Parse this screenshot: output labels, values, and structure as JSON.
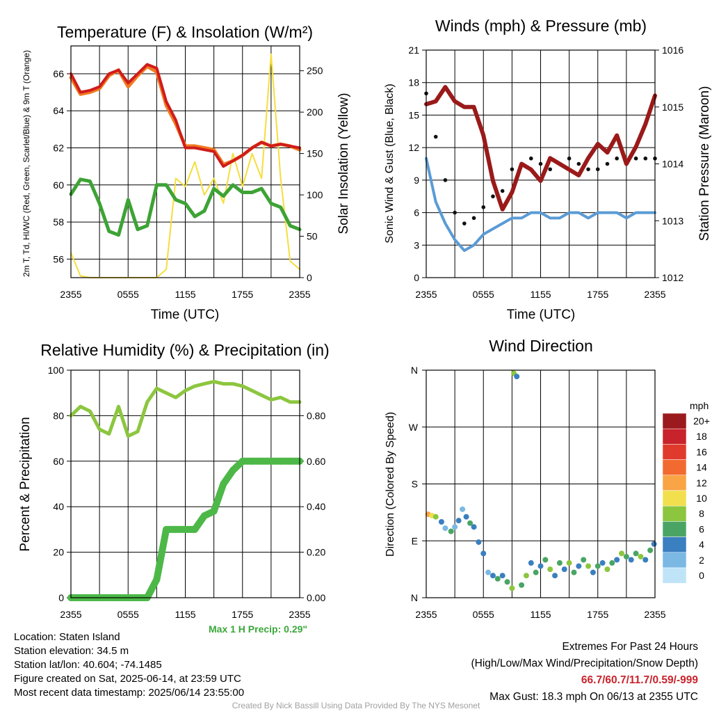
{
  "colors": {
    "red": "#d01c1c",
    "orange": "#f07a20",
    "green": "#3da335",
    "yellow": "#f5de3c",
    "blue": "#5a9bd5",
    "black": "#111111",
    "maroon": "#9a1a1a",
    "rh": "#8cc63f",
    "precip": "#4db848",
    "max_precip": "#3aa63a",
    "extremes": "#c8232c"
  },
  "panel_temp": {
    "title": "Temperature (F) & Insolation (W/m²)",
    "ylabel_left": "2m T, Td, HI/WC (Red, Green, Scarlet/Blue) & 9m T (Orange)",
    "ylabel_right": "Solar Insolation (Yellow)",
    "xlabel": "Time (UTC)"
  },
  "panel_wind": {
    "title": "Winds (mph) & Pressure (mb)",
    "ylabel_left": "Sonic Wind & Gust (Blue, Black)",
    "ylabel_right": "Station Pressure (Maroon)",
    "xlabel": "Time (UTC)"
  },
  "panel_rh": {
    "title": "Relative Humidity (%) & Precipitation (in)",
    "ylabel_left": "Percent & Precipitation",
    "max_precip": "Max 1 H Precip: 0.29\""
  },
  "panel_dir": {
    "title": "Wind Direction",
    "ylabel_left": "Direction (Colored By Speed)",
    "legend_unit": "mph",
    "legend": [
      {
        "label": "20+",
        "color": "#9b1a1d"
      },
      {
        "label": "18",
        "color": "#c8232c"
      },
      {
        "label": "16",
        "color": "#e03a2d"
      },
      {
        "label": "14",
        "color": "#f26a2f"
      },
      {
        "label": "12",
        "color": "#f9a545"
      },
      {
        "label": "10",
        "color": "#f1df4d"
      },
      {
        "label": "8",
        "color": "#8cc63f"
      },
      {
        "label": "6",
        "color": "#4aa564"
      },
      {
        "label": "4",
        "color": "#3a7fc0"
      },
      {
        "label": "2",
        "color": "#7bb8e4"
      },
      {
        "label": "0",
        "color": "#bfe4f8"
      }
    ]
  },
  "info": {
    "location": "Location: Staten Island",
    "elevation": "Station elevation: 34.5 m",
    "latlon": "Station lat/lon: 40.604; -74.1485",
    "created": "Figure created on Sat, 2025-06-14, at 23:59 UTC",
    "recent": "Most recent data timestamp: 2025/06/14 23:55:00",
    "extremes_title": "Extremes For Past 24 Hours",
    "extremes_sub": "(High/Low/Max Wind/Precipitation/Snow Depth)",
    "extremes_values": "66.7/60.7/11.7/0.59/-999",
    "max_gust": "Max Gust: 18.3 mph On 06/13 at 2355 UTC",
    "credit": "Created By Nick Bassill Using Data Provided By The NYS Mesonet"
  },
  "chart_data": [
    {
      "type": "line",
      "title": "Temperature (F) & Insolation (W/m²)",
      "xlabel": "Time (UTC)",
      "ylabel": "2m T, Td, HI/WC (Red, Green, Scarlet/Blue) & 9m T (Orange)",
      "y2label": "Solar Insolation (Yellow)",
      "xticks": [
        "2355",
        "0555",
        "1155",
        "1755",
        "2355"
      ],
      "ylim": [
        55,
        67.5
      ],
      "y2lim": [
        0,
        280
      ],
      "yticks": [
        56,
        58,
        60,
        62,
        64,
        66
      ],
      "y2ticks": [
        0,
        50,
        100,
        150,
        200,
        250
      ],
      "x": [
        0,
        1,
        2,
        3,
        4,
        5,
        6,
        7,
        8,
        9,
        10,
        11,
        12,
        13,
        14,
        15,
        16,
        17,
        18,
        19,
        20,
        21,
        22,
        23,
        24
      ],
      "series": [
        {
          "name": "2m T (Red)",
          "values": [
            66.0,
            65.0,
            65.1,
            65.3,
            66.0,
            66.2,
            65.5,
            66.0,
            66.5,
            66.3,
            64.5,
            63.5,
            62.0,
            62.0,
            61.9,
            61.8,
            61.0,
            61.3,
            61.6,
            62.0,
            62.3,
            62.1,
            62.2,
            62.1,
            62.0
          ],
          "axis": "left"
        },
        {
          "name": "9m T (Orange)",
          "values": [
            65.8,
            64.9,
            65.0,
            65.2,
            65.9,
            66.2,
            65.3,
            65.9,
            66.4,
            66.1,
            64.3,
            63.3,
            62.1,
            62.1,
            62.0,
            61.9,
            61.1,
            61.3,
            61.6,
            62.0,
            62.3,
            62.1,
            62.2,
            62.1,
            61.9
          ],
          "axis": "left"
        },
        {
          "name": "Td (Green)",
          "values": [
            59.5,
            60.3,
            60.2,
            59.0,
            57.5,
            57.3,
            59.2,
            57.6,
            57.8,
            60.0,
            60.0,
            59.2,
            59.0,
            58.3,
            58.6,
            59.8,
            59.4,
            60.0,
            59.6,
            59.6,
            59.8,
            59.0,
            58.8,
            57.8,
            57.6
          ],
          "axis": "left"
        },
        {
          "name": "Solar Insolation (Yellow)",
          "values": [
            30,
            2,
            0,
            0,
            0,
            0,
            0,
            0,
            0,
            0,
            10,
            120,
            110,
            140,
            100,
            120,
            90,
            150,
            110,
            150,
            120,
            270,
            120,
            20,
            10
          ],
          "axis": "right"
        }
      ]
    },
    {
      "type": "line",
      "title": "Winds (mph) & Pressure (mb)",
      "xlabel": "Time (UTC)",
      "ylabel": "Sonic Wind & Gust (Blue, Black)",
      "y2label": "Station Pressure (Maroon)",
      "xticks": [
        "2355",
        "0555",
        "1155",
        "1755",
        "2355"
      ],
      "ylim": [
        0,
        21
      ],
      "y2lim": [
        1012,
        1016
      ],
      "yticks": [
        0,
        3,
        6,
        9,
        12,
        15,
        18,
        21
      ],
      "y2ticks": [
        1012,
        1013,
        1014,
        1015,
        1016
      ],
      "x": [
        0,
        1,
        2,
        3,
        4,
        5,
        6,
        7,
        8,
        9,
        10,
        11,
        12,
        13,
        14,
        15,
        16,
        17,
        18,
        19,
        20,
        21,
        22,
        23,
        24
      ],
      "series": [
        {
          "name": "Sonic Wind (Blue)",
          "values": [
            11.0,
            7.0,
            5.0,
            3.5,
            2.5,
            3.0,
            4.0,
            4.5,
            5.0,
            5.5,
            5.5,
            6.0,
            6.0,
            5.5,
            5.5,
            6.0,
            6.0,
            5.5,
            6.0,
            6.0,
            6.0,
            5.5,
            6.0,
            6.0,
            6.0
          ],
          "axis": "left"
        },
        {
          "name": "Gust (Black)",
          "values": [
            17.0,
            13.0,
            9.0,
            6.0,
            5.0,
            5.5,
            6.5,
            7.5,
            8.0,
            10.0,
            10.5,
            11.0,
            10.5,
            10.0,
            10.5,
            11.0,
            10.5,
            10.0,
            10.0,
            10.5,
            11.0,
            10.5,
            11.0,
            11.0,
            11.0
          ],
          "axis": "left"
        },
        {
          "name": "Station Pressure (Maroon)",
          "values": [
            1015.05,
            1015.1,
            1015.35,
            1015.1,
            1015.0,
            1015.0,
            1014.5,
            1013.7,
            1013.2,
            1013.5,
            1014.0,
            1013.9,
            1013.7,
            1014.1,
            1014.0,
            1013.9,
            1013.8,
            1014.1,
            1014.35,
            1014.2,
            1014.5,
            1014.0,
            1014.3,
            1014.7,
            1015.2
          ],
          "axis": "right"
        }
      ]
    },
    {
      "type": "line",
      "title": "Relative Humidity (%) & Precipitation (in)",
      "ylabel": "Percent & Precipitation",
      "xticks": [
        "2355",
        "0555",
        "1155",
        "1755",
        "2355"
      ],
      "ylim": [
        0,
        100
      ],
      "y2lim": [
        0,
        1.0
      ],
      "yticks": [
        0,
        20,
        40,
        60,
        80,
        100
      ],
      "y2ticks": [
        0.0,
        0.2,
        0.4,
        0.6,
        0.8
      ],
      "x": [
        0,
        1,
        2,
        3,
        4,
        5,
        6,
        7,
        8,
        9,
        10,
        11,
        12,
        13,
        14,
        15,
        16,
        17,
        18,
        19,
        20,
        21,
        22,
        23,
        24
      ],
      "series": [
        {
          "name": "Relative Humidity",
          "values": [
            80,
            84,
            82,
            74,
            72,
            84,
            71,
            73,
            86,
            92,
            90,
            88,
            91,
            93,
            94,
            95,
            94,
            94,
            93,
            91,
            89,
            87,
            88,
            86,
            86
          ],
          "axis": "left"
        },
        {
          "name": "Precipitation",
          "values": [
            0,
            0,
            0,
            0,
            0,
            0,
            0,
            0,
            0,
            0.08,
            0.3,
            0.3,
            0.3,
            0.3,
            0.36,
            0.38,
            0.5,
            0.56,
            0.6,
            0.6,
            0.6,
            0.6,
            0.6,
            0.6,
            0.6
          ],
          "axis": "right"
        }
      ]
    },
    {
      "type": "scatter",
      "title": "Wind Direction",
      "ylabel": "Direction (Colored By Speed)",
      "xticks": [
        "2355",
        "0555",
        "1155",
        "1755",
        "2355"
      ],
      "yticks": [
        "N",
        "E",
        "S",
        "W",
        "N"
      ],
      "ylim": [
        0,
        360
      ],
      "legend_title": "mph",
      "x": [
        0.2,
        0.6,
        1.0,
        1.6,
        2.0,
        2.6,
        3.0,
        3.4,
        3.8,
        4.2,
        4.6,
        5.0,
        5.5,
        6.0,
        6.5,
        7.0,
        7.5,
        8.0,
        8.5,
        9.0,
        9.2,
        9.5,
        10.0,
        10.5,
        11.0,
        11.5,
        12.0,
        12.5,
        13.0,
        13.5,
        14.0,
        14.5,
        15.0,
        15.5,
        16.0,
        16.5,
        17.0,
        17.5,
        18.0,
        18.5,
        19.0,
        19.5,
        20.0,
        20.5,
        21.0,
        21.5,
        22.0,
        22.5,
        23.0,
        23.5,
        23.9
      ],
      "y": [
        132,
        130,
        128,
        120,
        110,
        105,
        112,
        122,
        140,
        128,
        118,
        112,
        88,
        70,
        40,
        35,
        30,
        35,
        25,
        15,
        355,
        350,
        20,
        35,
        55,
        40,
        50,
        60,
        45,
        35,
        55,
        45,
        55,
        40,
        50,
        60,
        50,
        40,
        50,
        55,
        45,
        55,
        60,
        70,
        65,
        60,
        70,
        65,
        60,
        75,
        85
      ],
      "speed": [
        12,
        10,
        8,
        4,
        2,
        6,
        2,
        4,
        2,
        4,
        6,
        4,
        4,
        4,
        2,
        4,
        6,
        4,
        6,
        8,
        8,
        4,
        6,
        8,
        4,
        6,
        4,
        6,
        8,
        4,
        6,
        4,
        8,
        6,
        4,
        6,
        8,
        4,
        6,
        4,
        8,
        6,
        4,
        8,
        6,
        4,
        6,
        8,
        4,
        6,
        4
      ]
    }
  ]
}
